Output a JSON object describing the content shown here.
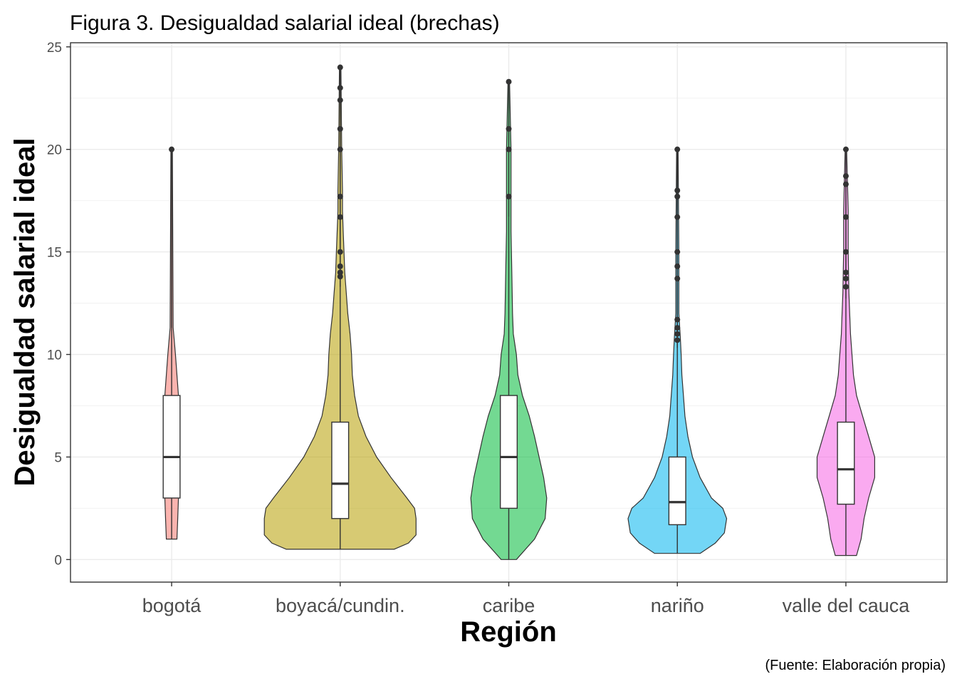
{
  "chart_data": {
    "type": "violin",
    "title": "Figura 3. Desigualdad salarial ideal (brechas)",
    "xlabel": "Región",
    "ylabel": "Desigualdad salarial ideal",
    "caption": "(Fuente: Elaboración propia)",
    "ylim": [
      -1.1,
      25.2
    ],
    "yticks": [
      0,
      5,
      10,
      15,
      20,
      25
    ],
    "grid": true,
    "legend": "none",
    "categories": [
      "bogotá",
      "boyacá/cundin.",
      "caribe",
      "nariño",
      "valle del cauca"
    ],
    "series": [
      {
        "category": "bogotá",
        "color": "#f8766d",
        "box": {
          "lower_whisker": 1,
          "q1": 3,
          "median": 5,
          "q3": 8,
          "upper_whisker": 11.3
        },
        "outliers": [
          20
        ],
        "density": [
          [
            1,
            0.07
          ],
          [
            2,
            0.08
          ],
          [
            3,
            0.09
          ],
          [
            4,
            0.1
          ],
          [
            5,
            0.1
          ],
          [
            6,
            0.1
          ],
          [
            7,
            0.1
          ],
          [
            8,
            0.09
          ],
          [
            9,
            0.07
          ],
          [
            10,
            0.05
          ],
          [
            11.3,
            0.02
          ],
          [
            20,
            0.01
          ]
        ]
      },
      {
        "category": "boyacá/cundin.",
        "color": "#b79f00",
        "box": {
          "lower_whisker": 0.5,
          "q1": 2,
          "median": 3.7,
          "q3": 6.7,
          "upper_whisker": 13.3
        },
        "outliers": [
          13.8,
          14,
          14.3,
          15,
          16.7,
          17.7,
          20,
          21,
          22.4,
          23,
          24
        ],
        "density": [
          [
            0.5,
            0.71
          ],
          [
            0.8,
            0.9
          ],
          [
            1.2,
            1.0
          ],
          [
            2,
            1.0
          ],
          [
            2.5,
            0.98
          ],
          [
            3,
            0.88
          ],
          [
            4,
            0.67
          ],
          [
            5,
            0.48
          ],
          [
            6,
            0.34
          ],
          [
            7,
            0.24
          ],
          [
            8,
            0.19
          ],
          [
            9,
            0.16
          ],
          [
            10,
            0.15
          ],
          [
            11,
            0.13
          ],
          [
            12,
            0.1
          ],
          [
            13,
            0.08
          ],
          [
            14,
            0.06
          ],
          [
            15,
            0.05
          ],
          [
            16,
            0.04
          ],
          [
            17,
            0.03
          ],
          [
            18,
            0.03
          ],
          [
            20,
            0.02
          ],
          [
            24,
            0.01
          ]
        ]
      },
      {
        "category": "caribe",
        "color": "#00ba38",
        "box": {
          "lower_whisker": 0,
          "q1": 2.5,
          "median": 5,
          "q3": 8,
          "upper_whisker": 16.7
        },
        "outliers": [
          17.7,
          20,
          21,
          23.3
        ],
        "density": [
          [
            0,
            0.1
          ],
          [
            1,
            0.34
          ],
          [
            2,
            0.48
          ],
          [
            3,
            0.5
          ],
          [
            4,
            0.46
          ],
          [
            5,
            0.4
          ],
          [
            6,
            0.34
          ],
          [
            7,
            0.27
          ],
          [
            8,
            0.18
          ],
          [
            9,
            0.12
          ],
          [
            10,
            0.1
          ],
          [
            11,
            0.06
          ],
          [
            12,
            0.05
          ],
          [
            14,
            0.04
          ],
          [
            16,
            0.03
          ],
          [
            18,
            0.03
          ],
          [
            20,
            0.03
          ],
          [
            23.3,
            0.01
          ]
        ]
      },
      {
        "category": "nariño",
        "color": "#00b4ef",
        "box": {
          "lower_whisker": 0.3,
          "q1": 1.7,
          "median": 2.8,
          "q3": 5,
          "upper_whisker": 10.3
        },
        "outliers": [
          10.7,
          11,
          11.3,
          11.7,
          13.7,
          14.3,
          15,
          16.7,
          17.7,
          18,
          20
        ],
        "density": [
          [
            0.3,
            0.3
          ],
          [
            0.8,
            0.5
          ],
          [
            1.3,
            0.62
          ],
          [
            2,
            0.65
          ],
          [
            2.5,
            0.6
          ],
          [
            3,
            0.45
          ],
          [
            4,
            0.3
          ],
          [
            5,
            0.2
          ],
          [
            6,
            0.14
          ],
          [
            7,
            0.1
          ],
          [
            8,
            0.08
          ],
          [
            9,
            0.06
          ],
          [
            10,
            0.05
          ],
          [
            10.8,
            0.04
          ],
          [
            12,
            0.02
          ],
          [
            15,
            0.02
          ],
          [
            20,
            0.01
          ]
        ]
      },
      {
        "category": "valle del cauca",
        "color": "#f564e3",
        "box": {
          "lower_whisker": 0.2,
          "q1": 2.7,
          "median": 4.4,
          "q3": 6.7,
          "upper_whisker": 12.7
        },
        "outliers": [
          13.3,
          13.7,
          14,
          15,
          16.7,
          18.3,
          18.7,
          20
        ],
        "density": [
          [
            0.2,
            0.14
          ],
          [
            1,
            0.2
          ],
          [
            2,
            0.24
          ],
          [
            3,
            0.3
          ],
          [
            4,
            0.38
          ],
          [
            5,
            0.38
          ],
          [
            6,
            0.3
          ],
          [
            7,
            0.22
          ],
          [
            8,
            0.14
          ],
          [
            9,
            0.1
          ],
          [
            10,
            0.08
          ],
          [
            11,
            0.06
          ],
          [
            12,
            0.05
          ],
          [
            13,
            0.04
          ],
          [
            15,
            0.03
          ],
          [
            17,
            0.03
          ],
          [
            20,
            0.01
          ]
        ]
      }
    ]
  }
}
